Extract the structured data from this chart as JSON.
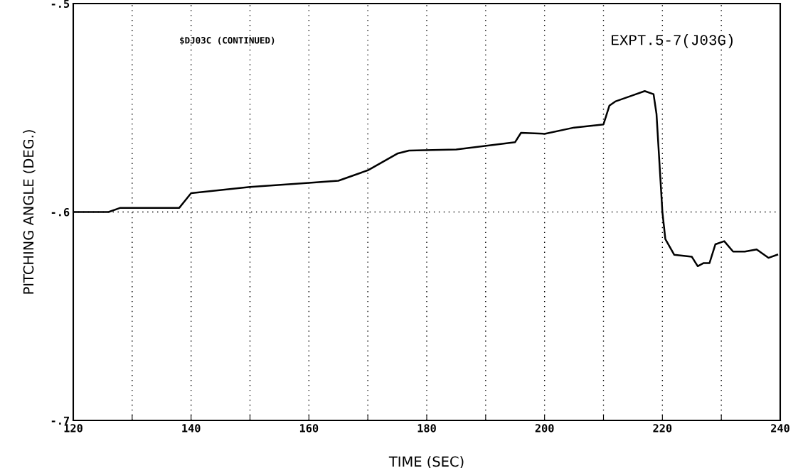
{
  "chart_data": {
    "type": "line",
    "xlabel": "TIME (SEC)",
    "ylabel": "PITCHING ANGLE (DEG.)",
    "annotations": [
      "$DJ03C (CONTINUED)",
      "EXPT.5-7(J03G)"
    ],
    "x": [
      120,
      126,
      128,
      138,
      140,
      150,
      160,
      165,
      170,
      175,
      177,
      185,
      195,
      196,
      200,
      205,
      210,
      211,
      212,
      215,
      217,
      218.5,
      219,
      220,
      220.5,
      222,
      225,
      226,
      227,
      228,
      229,
      230.5,
      232,
      234,
      236,
      238,
      239.5
    ],
    "series": [
      {
        "color": "#000000",
        "values": [
          -0.6,
          -0.6,
          -0.598,
          -0.598,
          -0.591,
          -0.588,
          -0.586,
          -0.585,
          -0.58,
          -0.572,
          -0.5705,
          -0.57,
          -0.5665,
          -0.562,
          -0.5625,
          -0.5595,
          -0.558,
          -0.549,
          -0.547,
          -0.544,
          -0.542,
          -0.5435,
          -0.553,
          -0.6,
          -0.613,
          -0.6205,
          -0.6215,
          -0.626,
          -0.6245,
          -0.6245,
          -0.6155,
          -0.614,
          -0.619,
          -0.619,
          -0.618,
          -0.622,
          -0.6205
        ]
      }
    ],
    "xlim": [
      120,
      240
    ],
    "xticks": [
      120,
      {
        "value": 130,
        "label": null
      },
      140,
      {
        "value": 150,
        "label": null
      },
      160,
      {
        "value": 170,
        "label": null
      },
      180,
      {
        "value": 190,
        "label": null
      },
      200,
      {
        "value": 210,
        "label": null
      },
      220,
      {
        "value": 230,
        "label": null
      },
      240
    ],
    "ylim": [
      -0.7,
      -0.5
    ],
    "yticks": [
      {
        "value": -0.7,
        "label": "-.7"
      },
      {
        "value": -0.6,
        "label": "-.6"
      },
      {
        "value": -0.5,
        "label": "-.5"
      }
    ],
    "grid": true,
    "legend": false,
    "marker": "none",
    "line_style": "solid"
  }
}
